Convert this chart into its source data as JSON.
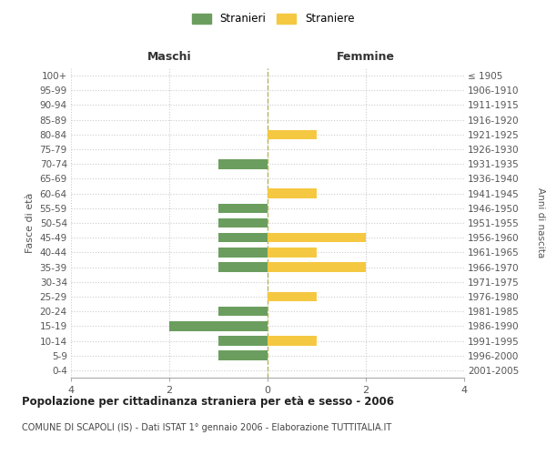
{
  "age_groups": [
    "100+",
    "95-99",
    "90-94",
    "85-89",
    "80-84",
    "75-79",
    "70-74",
    "65-69",
    "60-64",
    "55-59",
    "50-54",
    "45-49",
    "40-44",
    "35-39",
    "30-34",
    "25-29",
    "20-24",
    "15-19",
    "10-14",
    "5-9",
    "0-4"
  ],
  "birth_years": [
    "≤ 1905",
    "1906-1910",
    "1911-1915",
    "1916-1920",
    "1921-1925",
    "1926-1930",
    "1931-1935",
    "1936-1940",
    "1941-1945",
    "1946-1950",
    "1951-1955",
    "1956-1960",
    "1961-1965",
    "1966-1970",
    "1971-1975",
    "1976-1980",
    "1981-1985",
    "1986-1990",
    "1991-1995",
    "1996-2000",
    "2001-2005"
  ],
  "maschi_stranieri": [
    0,
    0,
    0,
    0,
    0,
    0,
    1,
    0,
    0,
    1,
    1,
    1,
    1,
    1,
    0,
    0,
    1,
    2,
    1,
    1,
    0
  ],
  "femmine_straniere": [
    0,
    0,
    0,
    0,
    1,
    0,
    0,
    0,
    1,
    0,
    0,
    2,
    1,
    2,
    0,
    1,
    0,
    0,
    1,
    0,
    0
  ],
  "color_maschi": "#6b9e5e",
  "color_femmine": "#f5c842",
  "title": "Popolazione per cittadinanza straniera per età e sesso - 2006",
  "subtitle": "COMUNE DI SCAPOLI (IS) - Dati ISTAT 1° gennaio 2006 - Elaborazione TUTTITALIA.IT",
  "legend_maschi": "Stranieri",
  "legend_femmine": "Straniere",
  "label_maschi": "Maschi",
  "label_femmine": "Femmine",
  "ylabel_left": "Fasce di età",
  "ylabel_right": "Anni di nascita",
  "xlim": 4,
  "background_color": "#ffffff",
  "grid_color": "#cccccc",
  "grid_style": "dotted"
}
